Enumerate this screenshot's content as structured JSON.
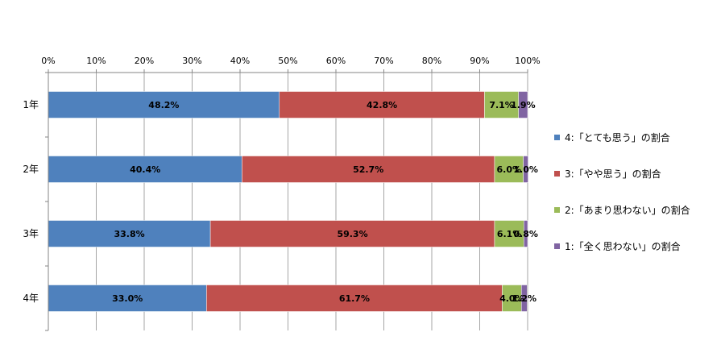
{
  "chart_data": {
    "type": "bar",
    "orientation": "horizontal",
    "stacked": true,
    "percent": true,
    "xlim": [
      0,
      100
    ],
    "x_ticks": [
      "0%",
      "10%",
      "20%",
      "30%",
      "40%",
      "50%",
      "60%",
      "70%",
      "80%",
      "90%",
      "100%"
    ],
    "x_axis_position": "top",
    "grid": true,
    "legend_position": "right",
    "categories": [
      "1年",
      "2年",
      "3年",
      "4年"
    ],
    "series": [
      {
        "name": "4:「とても思う」の割合",
        "color": "#4F81BD",
        "values": [
          48.2,
          40.4,
          33.8,
          33.0
        ],
        "labels": [
          "48.2%",
          "40.4%",
          "33.8%",
          "33.0%"
        ]
      },
      {
        "name": "3:「やや思う」の割合",
        "color": "#C0504D",
        "values": [
          42.8,
          52.7,
          59.3,
          61.7
        ],
        "labels": [
          "42.8%",
          "52.7%",
          "59.3%",
          "61.7%"
        ]
      },
      {
        "name": "2:「あまり思わない」の割合",
        "color": "#9BBB59",
        "values": [
          7.1,
          6.0,
          6.1,
          4.0
        ],
        "labels": [
          "7.1%",
          "6.0%",
          "6.1%",
          "4.0%"
        ]
      },
      {
        "name": "1:「全く思わない」の割合",
        "color": "#8064A2",
        "values": [
          1.9,
          1.0,
          0.8,
          1.2
        ],
        "labels": [
          "1.9%",
          "1.0%",
          "0.8%",
          "1.2%"
        ]
      }
    ]
  }
}
